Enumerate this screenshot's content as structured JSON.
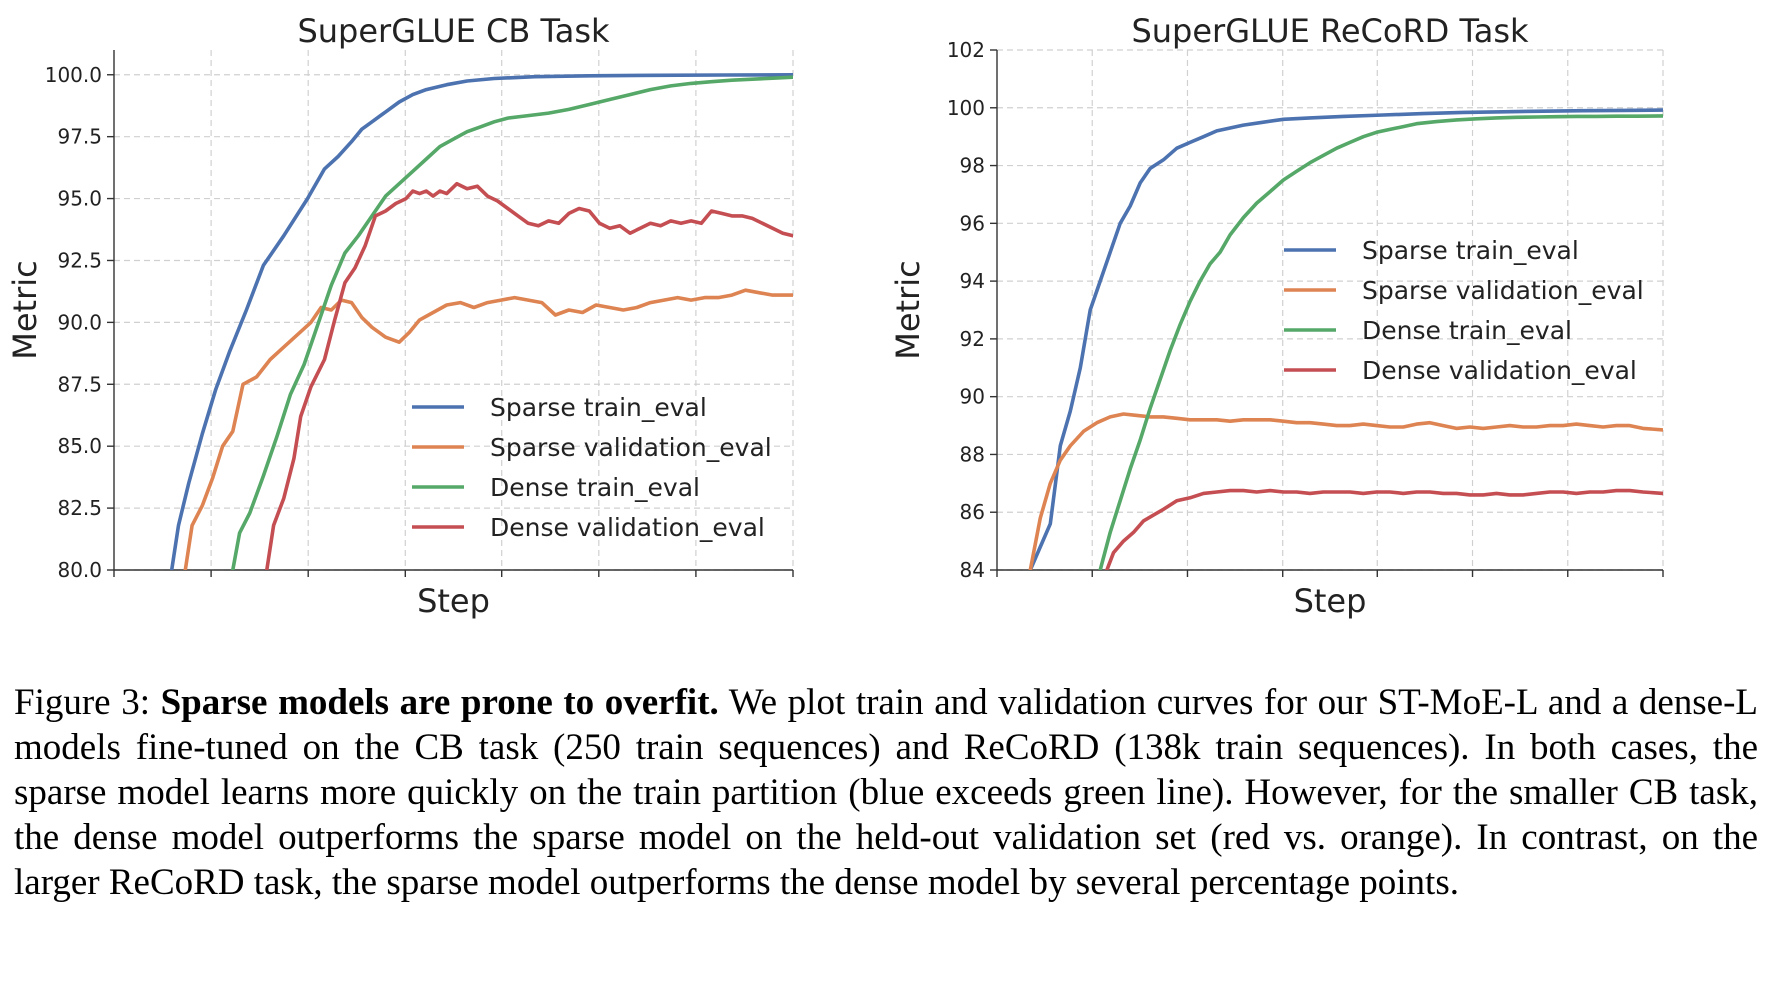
{
  "caption": {
    "label": "Figure 3:",
    "bold_title": "Sparse models are prone to overfit.",
    "text": "We plot train and validation curves for our ST-MoE-L and a dense-L models fine-tuned on the CB task (250 train sequences) and ReCoRD (138k train sequences). In both cases, the sparse model learns more quickly on the train partition (blue exceeds green line). However, for the smaller CB task, the dense model outperforms the sparse model on the held-out validation set (red vs. orange). In contrast, on the larger ReCoRD task, the sparse model outperforms the dense model by several percentage points."
  },
  "colors": {
    "Sparse train_eval": "#4c72b0",
    "Sparse validation_eval": "#dd8452",
    "Dense train_eval": "#55a868",
    "Dense validation_eval": "#c44e52"
  },
  "chart_data": [
    {
      "type": "line",
      "title": "SuperGLUE CB Task",
      "xlabel": "Step",
      "ylabel": "Metric",
      "xlim": [
        0,
        100
      ],
      "ylim": [
        80,
        101
      ],
      "yticks": [
        80.0,
        82.5,
        85.0,
        87.5,
        90.0,
        92.5,
        95.0,
        97.5,
        100.0
      ],
      "ytick_labels": [
        "80.0",
        "82.5",
        "85.0",
        "87.5",
        "90.0",
        "92.5",
        "95.0",
        "97.5",
        "100.0"
      ],
      "xticks": [
        0,
        14.3,
        28.6,
        42.9,
        57.1,
        71.4,
        85.7,
        100
      ],
      "grid": true,
      "legend_position": "lower-right",
      "series": [
        {
          "name": "Sparse train_eval",
          "x": [
            8.5,
            9.5,
            11,
            13,
            15,
            17,
            19.5,
            22,
            25,
            28.5,
            31,
            33,
            35,
            36.5,
            38,
            40,
            42,
            44,
            46,
            49,
            52,
            56,
            62,
            70,
            80,
            90,
            100
          ],
          "y": [
            80.0,
            81.8,
            83.5,
            85.5,
            87.3,
            88.8,
            90.5,
            92.3,
            93.5,
            95.0,
            96.2,
            96.7,
            97.3,
            97.8,
            98.1,
            98.5,
            98.9,
            99.2,
            99.4,
            99.6,
            99.75,
            99.85,
            99.92,
            99.96,
            99.98,
            99.99,
            100.0
          ]
        },
        {
          "name": "Sparse validation_eval",
          "x": [
            10.5,
            11.5,
            13,
            14.5,
            16,
            17.5,
            19,
            21,
            23,
            25,
            27,
            29,
            30.5,
            32,
            33.5,
            35,
            36.5,
            38,
            40,
            42,
            43.5,
            45,
            47,
            49,
            51,
            53,
            55,
            57,
            59,
            61,
            63,
            65,
            67,
            69,
            71,
            73,
            75,
            77,
            79,
            81,
            83,
            85,
            87,
            89,
            91,
            93,
            95,
            97,
            100
          ],
          "y": [
            80.0,
            81.8,
            82.6,
            83.7,
            85.0,
            85.6,
            87.5,
            87.8,
            88.5,
            89.0,
            89.5,
            90.0,
            90.6,
            90.5,
            90.9,
            90.8,
            90.2,
            89.8,
            89.4,
            89.2,
            89.6,
            90.1,
            90.4,
            90.7,
            90.8,
            90.6,
            90.8,
            90.9,
            91.0,
            90.9,
            90.8,
            90.3,
            90.5,
            90.4,
            90.7,
            90.6,
            90.5,
            90.6,
            90.8,
            90.9,
            91.0,
            90.9,
            91.0,
            91.0,
            91.1,
            91.3,
            91.2,
            91.1,
            91.1
          ]
        },
        {
          "name": "Dense train_eval",
          "x": [
            17.5,
            18.5,
            20,
            22,
            24,
            26,
            28,
            30,
            32,
            34,
            36,
            38,
            40,
            42,
            44,
            46,
            48,
            50,
            52,
            54,
            56,
            58,
            61,
            64,
            67,
            70,
            73,
            76,
            79,
            82,
            85,
            88,
            91,
            94,
            97,
            100
          ],
          "y": [
            80.0,
            81.5,
            82.3,
            83.8,
            85.4,
            87.1,
            88.3,
            89.9,
            91.5,
            92.8,
            93.5,
            94.3,
            95.1,
            95.6,
            96.1,
            96.6,
            97.1,
            97.4,
            97.7,
            97.9,
            98.1,
            98.25,
            98.35,
            98.45,
            98.6,
            98.8,
            99.0,
            99.2,
            99.4,
            99.55,
            99.65,
            99.72,
            99.78,
            99.82,
            99.86,
            99.9
          ]
        },
        {
          "name": "Dense validation_eval",
          "x": [
            22.5,
            23.5,
            25,
            26.5,
            27.5,
            29,
            31,
            32.5,
            34,
            35.5,
            37,
            38.5,
            40,
            41.5,
            43,
            44,
            45,
            46,
            47,
            48,
            49,
            50.5,
            52,
            53.5,
            55,
            56.5,
            58,
            59.5,
            61,
            62.5,
            64,
            65.5,
            67,
            68.5,
            70,
            71.5,
            73,
            74.5,
            76,
            77.5,
            79,
            80.5,
            82,
            83.5,
            85,
            86.5,
            88,
            89.5,
            91,
            92.5,
            94,
            95.5,
            97,
            98.5,
            100
          ],
          "y": [
            80.0,
            81.8,
            82.9,
            84.5,
            86.2,
            87.4,
            88.5,
            90.1,
            91.6,
            92.2,
            93.1,
            94.3,
            94.5,
            94.8,
            95.0,
            95.3,
            95.2,
            95.3,
            95.1,
            95.3,
            95.2,
            95.6,
            95.4,
            95.5,
            95.1,
            94.9,
            94.6,
            94.3,
            94.0,
            93.9,
            94.1,
            94.0,
            94.4,
            94.6,
            94.5,
            94.0,
            93.8,
            93.9,
            93.6,
            93.8,
            94.0,
            93.9,
            94.1,
            94.0,
            94.1,
            94.0,
            94.5,
            94.4,
            94.3,
            94.3,
            94.2,
            94.0,
            93.8,
            93.6,
            93.5
          ]
        }
      ]
    },
    {
      "type": "line",
      "title": "SuperGLUE ReCoRD Task",
      "xlabel": "Step",
      "ylabel": "Metric",
      "xlim": [
        0,
        100
      ],
      "ylim": [
        84,
        102
      ],
      "yticks": [
        84,
        86,
        88,
        90,
        92,
        94,
        96,
        98,
        100,
        102
      ],
      "ytick_labels": [
        "84",
        "86",
        "88",
        "90",
        "92",
        "94",
        "96",
        "98",
        "100",
        "102"
      ],
      "xticks": [
        0,
        14.3,
        28.6,
        42.9,
        57.1,
        71.4,
        85.7,
        100
      ],
      "grid": true,
      "legend_position": "center-right",
      "series": [
        {
          "name": "Sparse train_eval",
          "x": [
            5,
            6.5,
            8,
            9.5,
            11,
            12.5,
            14,
            15.5,
            17,
            18.5,
            20,
            21.5,
            23,
            25,
            27,
            29,
            31,
            33,
            35,
            37,
            40,
            43,
            47,
            52,
            58,
            64,
            70,
            76,
            82,
            88,
            94,
            100
          ],
          "y": [
            84.0,
            84.8,
            85.6,
            88.3,
            89.5,
            91.0,
            93.0,
            94.0,
            95.0,
            96.0,
            96.6,
            97.4,
            97.9,
            98.2,
            98.6,
            98.8,
            99.0,
            99.2,
            99.3,
            99.4,
            99.5,
            99.6,
            99.65,
            99.7,
            99.75,
            99.8,
            99.84,
            99.86,
            99.88,
            99.9,
            99.91,
            99.92
          ]
        },
        {
          "name": "Sparse validation_eval",
          "x": [
            5,
            6.5,
            8,
            9.5,
            11,
            13,
            15,
            17,
            19,
            21,
            23,
            25,
            27,
            29,
            31,
            33,
            35,
            37,
            39,
            41,
            43,
            45,
            47,
            49,
            51,
            53,
            55,
            57,
            59,
            61,
            63,
            65,
            67,
            69,
            71,
            73,
            75,
            77,
            79,
            81,
            83,
            85,
            87,
            89,
            91,
            93,
            95,
            97,
            100
          ],
          "y": [
            84.0,
            85.8,
            87.0,
            87.8,
            88.3,
            88.8,
            89.1,
            89.3,
            89.4,
            89.35,
            89.3,
            89.3,
            89.25,
            89.2,
            89.2,
            89.2,
            89.15,
            89.2,
            89.2,
            89.2,
            89.15,
            89.1,
            89.1,
            89.05,
            89.0,
            89.0,
            89.05,
            89.0,
            88.95,
            88.95,
            89.05,
            89.1,
            89.0,
            88.9,
            88.95,
            88.9,
            88.95,
            89.0,
            88.95,
            88.95,
            89.0,
            89.0,
            89.05,
            89.0,
            88.95,
            89.0,
            89.0,
            88.9,
            88.85
          ]
        },
        {
          "name": "Dense train_eval",
          "x": [
            15.5,
            17,
            18.5,
            20,
            21.5,
            23,
            24.5,
            26,
            27.5,
            29,
            30.5,
            32,
            33.5,
            35,
            37,
            39,
            41,
            43,
            45,
            47,
            49,
            51,
            53,
            55,
            57,
            59,
            61,
            63,
            66,
            69,
            72,
            75,
            78,
            81,
            84,
            87,
            90,
            93,
            96,
            100
          ],
          "y": [
            84.0,
            85.3,
            86.4,
            87.5,
            88.5,
            89.6,
            90.6,
            91.6,
            92.5,
            93.3,
            94.0,
            94.6,
            95.0,
            95.6,
            96.2,
            96.7,
            97.1,
            97.5,
            97.8,
            98.1,
            98.35,
            98.6,
            98.8,
            99.0,
            99.15,
            99.25,
            99.35,
            99.45,
            99.52,
            99.58,
            99.62,
            99.65,
            99.67,
            99.68,
            99.69,
            99.7,
            99.7,
            99.71,
            99.71,
            99.72
          ]
        },
        {
          "name": "Dense validation_eval",
          "x": [
            16.5,
            17.5,
            19,
            20.5,
            22,
            23.5,
            25,
            27,
            29,
            31,
            33,
            35,
            37,
            39,
            41,
            43,
            45,
            47,
            49,
            51,
            53,
            55,
            57,
            59,
            61,
            63,
            65,
            67,
            69,
            71,
            73,
            75,
            77,
            79,
            81,
            83,
            85,
            87,
            89,
            91,
            93,
            95,
            97,
            100
          ],
          "y": [
            84.0,
            84.6,
            85.0,
            85.3,
            85.7,
            85.9,
            86.1,
            86.4,
            86.5,
            86.65,
            86.7,
            86.75,
            86.75,
            86.7,
            86.75,
            86.7,
            86.7,
            86.65,
            86.7,
            86.7,
            86.7,
            86.65,
            86.7,
            86.7,
            86.65,
            86.7,
            86.7,
            86.65,
            86.65,
            86.6,
            86.6,
            86.65,
            86.6,
            86.6,
            86.65,
            86.7,
            86.7,
            86.65,
            86.7,
            86.7,
            86.75,
            86.75,
            86.7,
            86.65
          ]
        }
      ]
    }
  ]
}
